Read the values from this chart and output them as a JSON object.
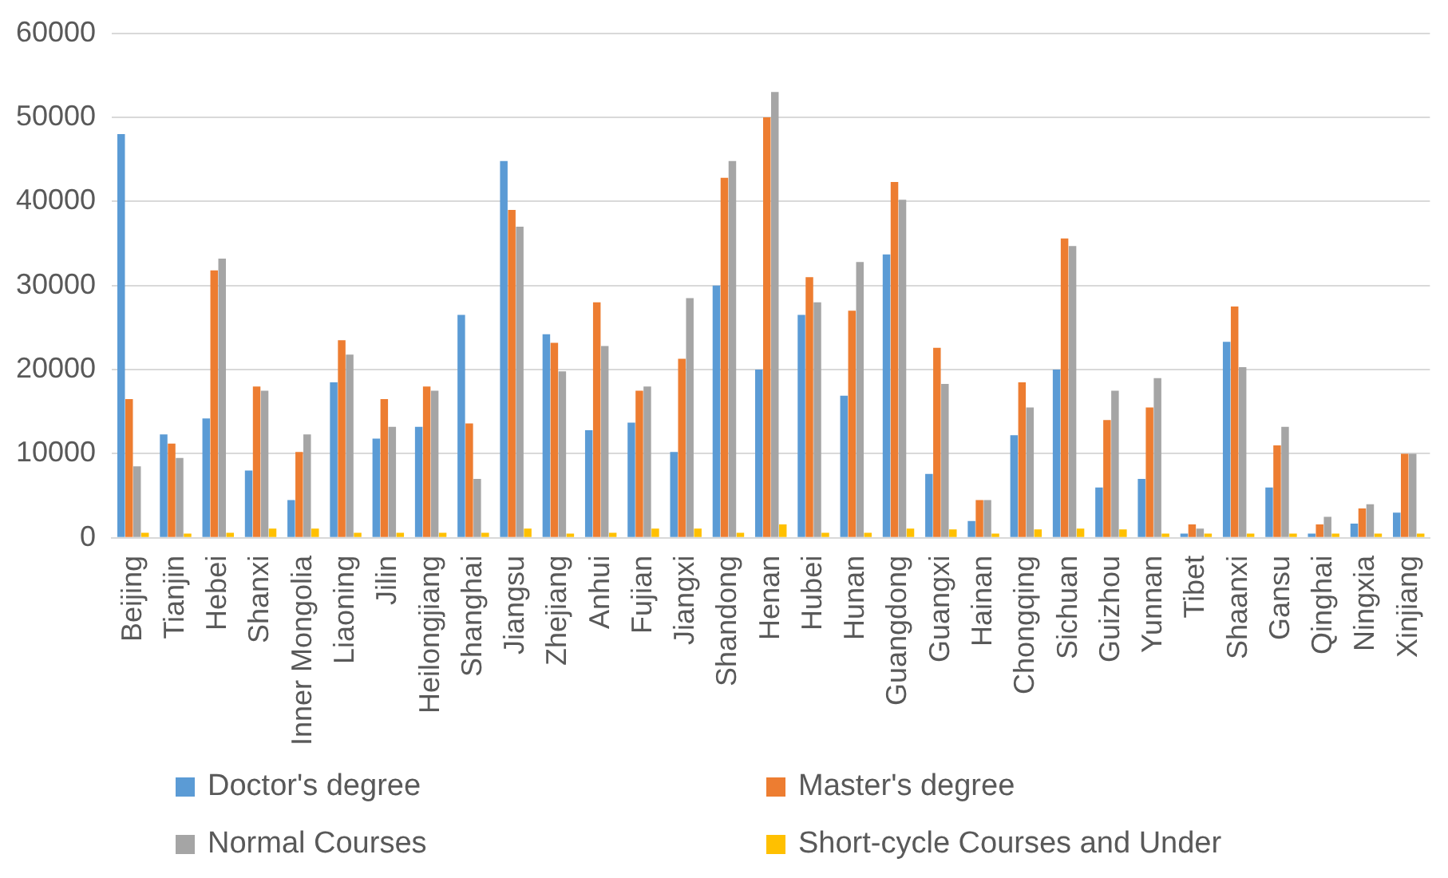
{
  "chart_data": {
    "type": "bar",
    "categories": [
      "Beijing",
      "Tianjin",
      "Hebei",
      "Shanxi",
      "Inner Mongolia",
      "Liaoning",
      "Jilin",
      "Heilongjiang",
      "Shanghai",
      "Jiangsu",
      "Zhejiang",
      "Anhui",
      "Fujian",
      "Jiangxi",
      "Shandong",
      "Henan",
      "Hubei",
      "Hunan",
      "Guangdong",
      "Guangxi",
      "Hainan",
      "Chongqing",
      "Sichuan",
      "Guizhou",
      "Yunnan",
      "Tibet",
      "Shaanxi",
      "Gansu",
      "Qinghai",
      "Ningxia",
      "Xinjiang"
    ],
    "series": [
      {
        "name": "Doctor's degree",
        "color": "#5b9bd5",
        "values": [
          48000,
          12300,
          14200,
          8000,
          4500,
          18500,
          11800,
          13200,
          26500,
          44800,
          24200,
          12800,
          13700,
          10200,
          30000,
          20000,
          26500,
          16900,
          33700,
          7600,
          2000,
          12200,
          20000,
          6000,
          7000,
          500,
          23300,
          6000,
          500,
          1700,
          3000
        ]
      },
      {
        "name": "Master's degree",
        "color": "#ed7d31",
        "values": [
          16500,
          11200,
          31800,
          18000,
          10200,
          23500,
          16500,
          18000,
          13600,
          39000,
          23200,
          28000,
          17500,
          21300,
          42800,
          50000,
          31000,
          27000,
          42300,
          22600,
          4500,
          18500,
          35600,
          14000,
          15500,
          1600,
          27500,
          11000,
          1600,
          3500,
          10000
        ]
      },
      {
        "name": "Normal Courses",
        "color": "#a5a5a5",
        "values": [
          8500,
          9500,
          33200,
          17500,
          12300,
          21800,
          13200,
          17500,
          7000,
          37000,
          19800,
          22800,
          18000,
          28500,
          44800,
          53000,
          28000,
          32800,
          40200,
          18300,
          4500,
          15500,
          34700,
          17500,
          19000,
          1100,
          20300,
          13200,
          2500,
          4000,
          10000
        ]
      },
      {
        "name": "Short-cycle Courses and Under",
        "color": "#ffc000",
        "values": [
          600,
          500,
          600,
          1100,
          1100,
          600,
          600,
          600,
          600,
          1100,
          500,
          600,
          1100,
          1100,
          600,
          1600,
          600,
          600,
          1100,
          1000,
          500,
          1000,
          1100,
          1000,
          500,
          500,
          500,
          500,
          500,
          500,
          500
        ]
      }
    ],
    "ylim": [
      0,
      60000
    ],
    "yticks": [
      0,
      10000,
      20000,
      30000,
      40000,
      50000,
      60000
    ],
    "grid": "y",
    "legend": "bottom"
  }
}
